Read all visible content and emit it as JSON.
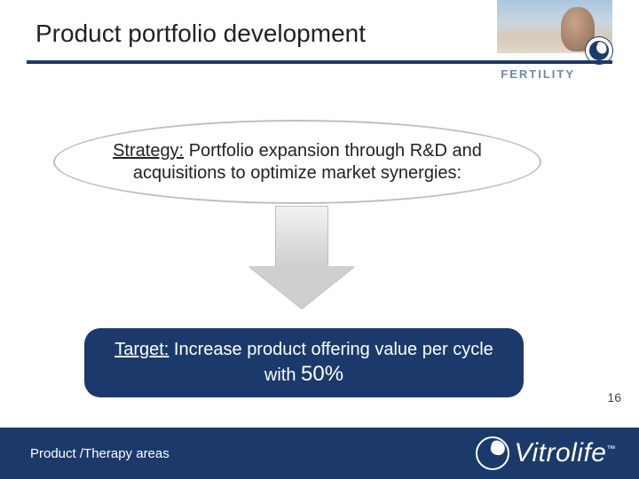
{
  "header": {
    "title": "Product portfolio development",
    "category_label": "FERTILITY",
    "rule_color": "#1b3a6b"
  },
  "strategy": {
    "label": "Strategy:",
    "text": "Portfolio expansion through R&D and acquisitions to optimize market synergies:",
    "border_color": "#bfbfbf",
    "font_size": 20
  },
  "arrow": {
    "fill_top": "#f2f2f2",
    "fill_bottom": "#cfcfcf"
  },
  "target": {
    "label": "Target:",
    "text_before": "Increase product offering value per cycle with",
    "percent": "50%",
    "bg_color": "#1b3a6b",
    "text_color": "#ffffff",
    "font_size": 20,
    "border_radius": 18
  },
  "page_number": "16",
  "footer": {
    "text": "Product /Therapy areas",
    "bg_color": "#1b3a6b",
    "logo_word": "Vitrolife",
    "logo_tm": "™"
  }
}
